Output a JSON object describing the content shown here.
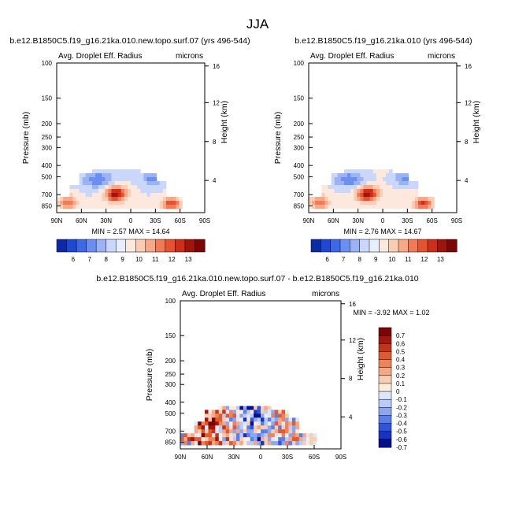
{
  "page_title": "JJA",
  "colors": {
    "neg_scale": [
      "#0b2aa8",
      "#1f48d4",
      "#3d68e8",
      "#6b8ff0",
      "#9bb3f5",
      "#c9d7fa",
      "#e7eefc"
    ],
    "pos_scale": [
      "#fde8dd",
      "#fbcdb5",
      "#f7a886",
      "#f27b55",
      "#e6512f",
      "#cc2e17",
      "#a0150b",
      "#7a0606"
    ],
    "diff_neg": [
      "#050e8c",
      "#1534c4",
      "#2f55dd",
      "#5b7fea",
      "#8ca7f2",
      "#b9cbf7",
      "#dde7fb"
    ],
    "diff_pos": [
      "#fdebdc",
      "#f9cdb0",
      "#f4a883",
      "#ee8259",
      "#e05a33",
      "#c4331b",
      "#a3150d",
      "#7d0505"
    ]
  },
  "chart_data": [
    {
      "type": "heatmap",
      "title": "b.e12.B1850C5.f19_g16.21ka.010.new.topo.surf.07 (yrs 496-544)",
      "left_label": "Avg. Droplet Eff. Radius",
      "right_label": "microns",
      "ylabel": "Pressure (mb)",
      "y2label": "Height (km)",
      "x_ticks": [
        "90N",
        "60N",
        "30N",
        "0",
        "30S",
        "60S",
        "90S"
      ],
      "y_ticks": [
        "100",
        "150",
        "200",
        "250",
        "300",
        "400",
        "500",
        "700",
        "850"
      ],
      "y2_ticks": [
        "16",
        "12",
        "8",
        "4"
      ],
      "stats": {
        "min_label": "MIN =",
        "min": "2.57",
        "max_label": "MAX =",
        "max": "14.64"
      },
      "colorbar": {
        "labels": [
          "6",
          "7",
          "8",
          "9",
          "10",
          "11",
          "12",
          "13"
        ]
      }
    },
    {
      "type": "heatmap",
      "title": "b.e12.B1850C5.f19_g16.21ka.010 (yrs 496-544)",
      "left_label": "Avg. Droplet Eff. Radius",
      "right_label": "microns",
      "ylabel": "Pressure (mb)",
      "y2label": "Height (km)",
      "x_ticks": [
        "90N",
        "60N",
        "30N",
        "0",
        "30S",
        "60S",
        "90S"
      ],
      "y_ticks": [
        "100",
        "150",
        "200",
        "250",
        "300",
        "400",
        "500",
        "700",
        "850"
      ],
      "y2_ticks": [
        "16",
        "12",
        "8",
        "4"
      ],
      "stats": {
        "min_label": "MIN =",
        "min": "2.76",
        "max_label": "MAX =",
        "max": "14.67"
      },
      "colorbar": {
        "labels": [
          "6",
          "7",
          "8",
          "9",
          "10",
          "11",
          "12",
          "13"
        ]
      }
    },
    {
      "type": "heatmap",
      "title": "b.e12.B1850C5.f19_g16.21ka.010.new.topo.surf.07 - b.e12.B1850C5.f19_g16.21ka.010",
      "left_label": "Avg. Droplet Eff. Radius",
      "right_label": "microns",
      "ylabel": "Pressure (mb)",
      "y2label": "Height (km)",
      "x_ticks": [
        "90N",
        "60N",
        "30N",
        "0",
        "30S",
        "60S",
        "90S"
      ],
      "y_ticks": [
        "100",
        "150",
        "200",
        "250",
        "300",
        "400",
        "500",
        "700",
        "850"
      ],
      "y2_ticks": [
        "16",
        "12",
        "8",
        "4"
      ],
      "stats": {
        "min_label": "MIN =",
        "min": "-3.92",
        "max_label": "MAX =",
        "max": "1.02"
      },
      "colorbar": {
        "labels": [
          "0.7",
          "0.6",
          "0.5",
          "0.4",
          "0.3",
          "0.2",
          "0.1",
          "0",
          "-0.1",
          "-0.2",
          "-0.3",
          "-0.4",
          "-0.5",
          "-0.6",
          "-0.7"
        ]
      }
    }
  ]
}
